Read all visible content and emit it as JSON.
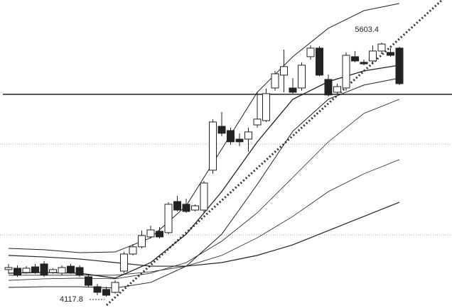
{
  "chart_data": {
    "type": "candlestick",
    "color": "#222222",
    "candles": {
      "open": [
        4276,
        4284,
        4259,
        4292,
        4309,
        4259,
        4255,
        4296,
        4288,
        4234,
        4176,
        4160,
        4143,
        4267,
        4367,
        4409,
        4467,
        4500,
        4492,
        4674,
        4658,
        4624,
        4624,
        4857,
        5114,
        5089,
        5039,
        5039,
        5122,
        5147,
        5338,
        5413,
        5338,
        5338,
        5521,
        5571,
        5388,
        5313,
        5338,
        5521,
        5488,
        5496,
        5554,
        5546,
        5571
      ],
      "high": [
        4309,
        4301,
        4296,
        4309,
        4326,
        4284,
        4301,
        4309,
        4301,
        4251,
        4193,
        4176,
        4213,
        4379,
        4425,
        4504,
        4533,
        4525,
        4670,
        4707,
        4691,
        4658,
        4794,
        5156,
        5197,
        5106,
        5073,
        5106,
        5313,
        5334,
        5438,
        5562,
        5396,
        5488,
        5587,
        5583,
        5417,
        5363,
        5546,
        5554,
        5504,
        5587,
        5603.4,
        5571,
        5579
      ],
      "low": [
        4251,
        4234,
        4251,
        4251,
        4234,
        4251,
        4243,
        4251,
        4234,
        4176,
        4126,
        4117.8,
        4135,
        4255,
        4359,
        4400,
        4458,
        4458,
        4483,
        4616,
        4608,
        4616,
        4608,
        4836,
        5056,
        5006,
        4998,
        4965,
        5106,
        5139,
        5322,
        5313,
        5305,
        5322,
        5504,
        5405,
        5288,
        5305,
        5322,
        5488,
        5471,
        5479,
        5537,
        5521,
        5355
      ],
      "close": [
        4288,
        4243,
        4284,
        4259,
        4243,
        4276,
        4288,
        4259,
        4243,
        4184,
        4143,
        4126,
        4201,
        4367,
        4409,
        4475,
        4508,
        4467,
        4658,
        4624,
        4616,
        4649,
        4782,
        5139,
        5073,
        5023,
        5023,
        5081,
        5156,
        5305,
        5421,
        5463,
        5313,
        5471,
        5571,
        5413,
        5297,
        5346,
        5529,
        5496,
        5479,
        5554,
        5595,
        5529,
        5363
      ]
    },
    "lines": [
      {
        "x": [
          0,
          4,
          8,
          12,
          16,
          20,
          24,
          28,
          32,
          36,
          40,
          44
        ],
        "values": [
          4400,
          4392,
          4375,
          4379,
          4462,
          4649,
          4981,
          5313,
          5521,
          5687,
          5790,
          5832
        ],
        "width": 1
      },
      {
        "x": [
          0,
          4,
          8,
          12,
          16,
          20,
          24,
          28,
          32,
          36,
          40,
          44
        ],
        "values": [
          4255,
          4259,
          4255,
          4226,
          4317,
          4483,
          4732,
          5023,
          5272,
          5375,
          5438,
          5471
        ],
        "width": 1.3
      },
      {
        "x": [
          0,
          4,
          8,
          12,
          16,
          20,
          24,
          28,
          32,
          36,
          40,
          44
        ],
        "values": [
          4172,
          4176,
          4176,
          4168,
          4201,
          4296,
          4483,
          4774,
          5085,
          5272,
          5355,
          5396
        ],
        "width": 1
      },
      {
        "x": [
          0,
          4,
          8,
          12,
          16,
          20,
          24,
          28,
          32,
          36,
          40,
          44
        ],
        "values": [
          4213,
          4222,
          4226,
          4222,
          4255,
          4317,
          4442,
          4608,
          4815,
          5023,
          5189,
          5272
        ],
        "width": 0.8
      },
      {
        "x": [
          0,
          4,
          8,
          12,
          16,
          20,
          24,
          28,
          32,
          36,
          40,
          44
        ],
        "values": [
          4243,
          4243,
          4243,
          4243,
          4263,
          4296,
          4359,
          4462,
          4587,
          4732,
          4836,
          4919
        ],
        "width": 0.8
      },
      {
        "x": [
          0,
          4,
          8,
          12,
          16,
          20,
          24,
          28,
          32,
          36,
          40,
          44
        ],
        "values": [
          4359,
          4350,
          4338,
          4317,
          4296,
          4296,
          4317,
          4359,
          4421,
          4504,
          4587,
          4670
        ],
        "width": 1.2
      }
    ],
    "reference_line": 5301,
    "grid_levels": [
      5010,
      4479
    ]
  }
}
